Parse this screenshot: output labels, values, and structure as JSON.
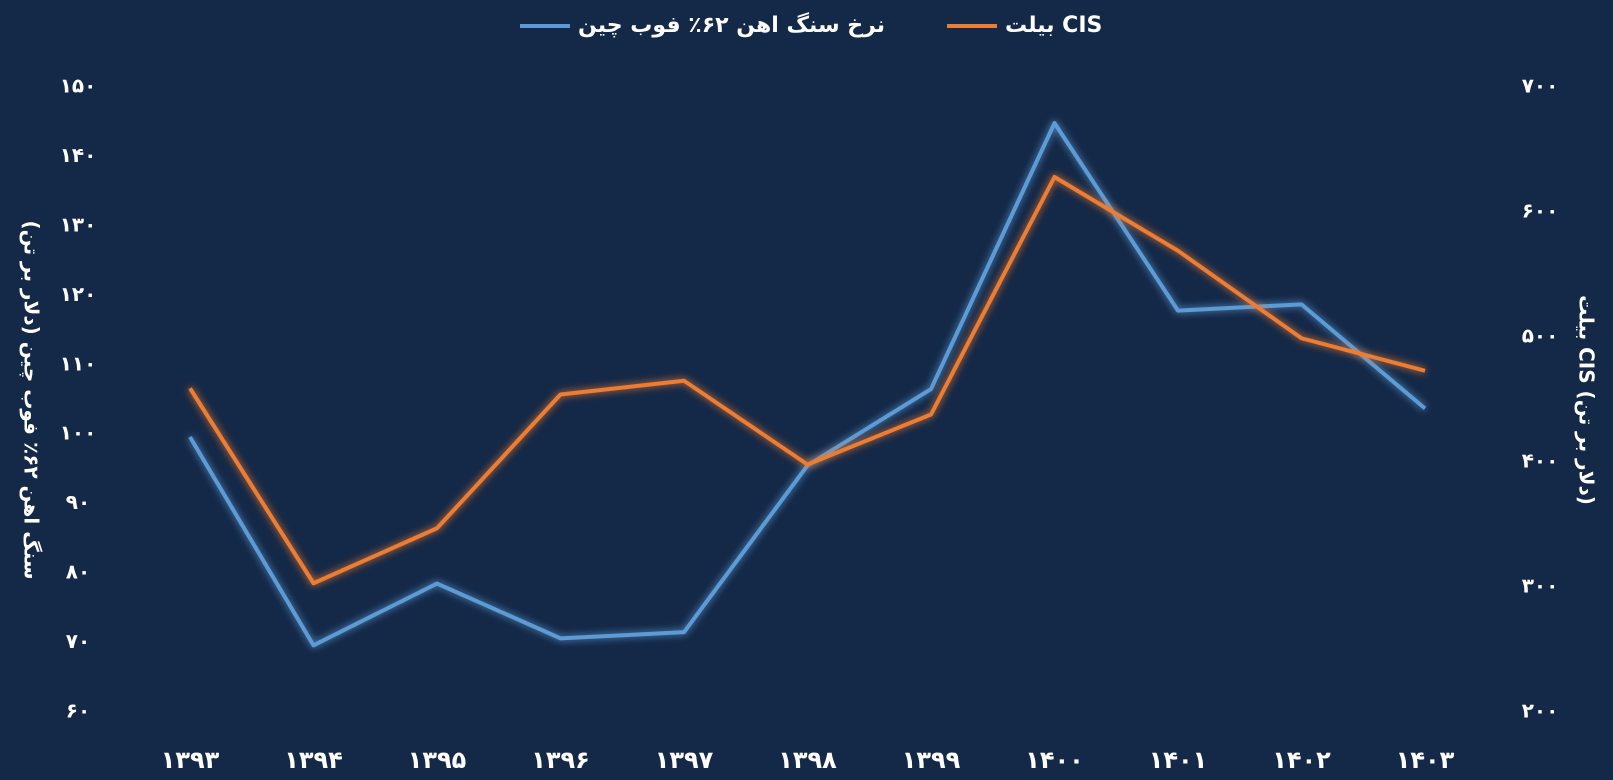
{
  "chart_data": {
    "type": "line",
    "categories": [
      "۱۳۹۳",
      "۱۳۹۴",
      "۱۳۹۵",
      "۱۳۹۶",
      "۱۳۹۷",
      "۱۳۹۸",
      "۱۳۹۹",
      "۱۴۰۰",
      "۱۴۰۱",
      "۱۴۰۲",
      "۱۴۰۳"
    ],
    "series": [
      {
        "name": "نرخ سنگ اهن ۶۲٪ فوب چین",
        "color": "#5b9bd5",
        "values": [
          99.6,
          69.6,
          78.5,
          70.6,
          71.5,
          95.5,
          106.5,
          144.8,
          117.8,
          118.7,
          103.7
        ]
      },
      {
        "name": "بیلت CIS",
        "color": "#ed7d31",
        "axis": "y2",
        "values": [
          459,
          303,
          347,
          454,
          465,
          398,
          438,
          628,
          569,
          499,
          473
        ]
      }
    ],
    "ylabel": "سنگ اهن ۶۲٪ فوب چین (دلار بر تن)",
    "y2label": "بیلت CIS (دلار بر تن)",
    "ylim": [
      60,
      150
    ],
    "yticks": [
      {
        "value": 60,
        "label": "۶۰"
      },
      {
        "value": 70,
        "label": "۷۰"
      },
      {
        "value": 80,
        "label": "۸۰"
      },
      {
        "value": 90,
        "label": "۹۰"
      },
      {
        "value": 100,
        "label": "۱۰۰"
      },
      {
        "value": 110,
        "label": "۱۱۰"
      },
      {
        "value": 120,
        "label": "۱۲۰"
      },
      {
        "value": 130,
        "label": "۱۳۰"
      },
      {
        "value": 140,
        "label": "۱۴۰"
      },
      {
        "value": 150,
        "label": "۱۵۰"
      }
    ],
    "y2lim": [
      200,
      700
    ],
    "y2ticks": [
      {
        "value": 200,
        "label": "۲۰۰"
      },
      {
        "value": 300,
        "label": "۳۰۰"
      },
      {
        "value": 400,
        "label": "۴۰۰"
      },
      {
        "value": 500,
        "label": "۵۰۰"
      },
      {
        "value": 600,
        "label": "۶۰۰"
      },
      {
        "value": 700,
        "label": "۷۰۰"
      }
    ],
    "legend": "top",
    "grid": false
  }
}
